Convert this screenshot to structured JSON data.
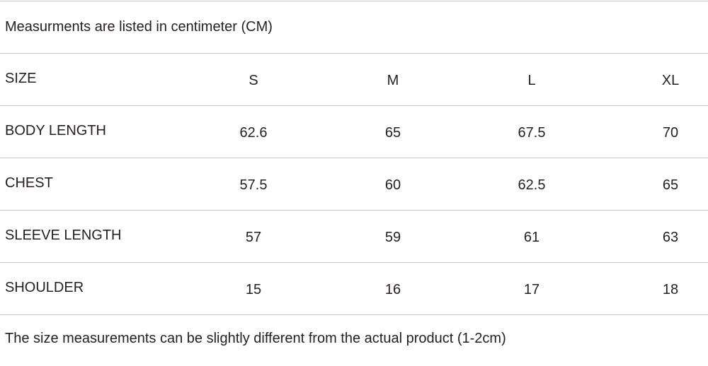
{
  "note": "Measurments are listed in centimeter (CM)",
  "table": {
    "header": [
      "SIZE",
      "S",
      "M",
      "L",
      "XL"
    ],
    "rows": [
      [
        "BODY LENGTH",
        "62.6",
        "65",
        "67.5",
        "70"
      ],
      [
        "CHEST",
        "57.5",
        "60",
        "62.5",
        "65"
      ],
      [
        "SLEEVE LENGTH",
        "57",
        "59",
        "61",
        "63"
      ],
      [
        "SHOULDER",
        "15",
        "16",
        "17",
        "18"
      ]
    ]
  },
  "footer": "The size measurements can be slightly different from the actual product (1-2cm)"
}
